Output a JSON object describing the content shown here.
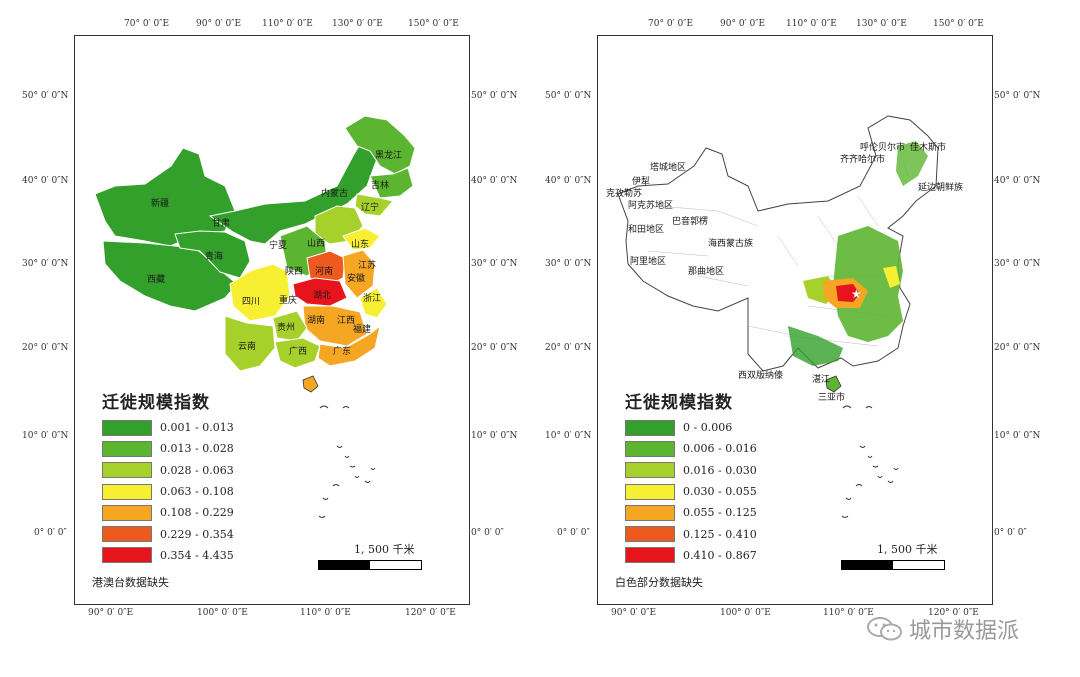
{
  "lon_ticks_top": [
    "70° 0′ 0″E",
    "90° 0′ 0″E",
    "110° 0′ 0″E",
    "130° 0′ 0″E",
    "150° 0′ 0″E"
  ],
  "lon_ticks_bottom": [
    "90° 0′ 0″E",
    "100° 0′ 0″E",
    "110° 0′ 0″E",
    "120° 0′ 0″E"
  ],
  "lat_ticks": [
    "50° 0′ 0″N",
    "40° 0′ 0″N",
    "30° 0′ 0″N",
    "20° 0′ 0″N",
    "10° 0′ 0″N",
    "0° 0′ 0″"
  ],
  "scale_label": "1, 500 千米",
  "colors": {
    "c1": "#33a02c",
    "c2": "#5cb531",
    "c3": "#a6d12a",
    "c4": "#f7f032",
    "c5": "#f5a623",
    "c6": "#ee5a1e",
    "c7": "#e8141c"
  },
  "left": {
    "legend_title": "迁徙规模指数",
    "legend_items": [
      {
        "label": "0.001 - 0.013",
        "color": "#33a02c"
      },
      {
        "label": "0.013 - 0.028",
        "color": "#5cb531"
      },
      {
        "label": "0.028 - 0.063",
        "color": "#a6d12a"
      },
      {
        "label": "0.063 - 0.108",
        "color": "#f7f032"
      },
      {
        "label": "0.108 - 0.229",
        "color": "#f5a623"
      },
      {
        "label": "0.229 - 0.354",
        "color": "#ee5a1e"
      },
      {
        "label": "0.354 - 4.435",
        "color": "#e8141c"
      }
    ],
    "missing_note": "港澳台数据缺失",
    "province_labels": [
      "黑龙江",
      "吉林",
      "内蒙古",
      "新疆",
      "甘肃",
      "青海",
      "西藏",
      "四川",
      "云南",
      "山西",
      "陕西",
      "河南",
      "湖北",
      "湖南",
      "江西",
      "贵州",
      "广西",
      "广东",
      "浙江",
      "福建",
      "安徽",
      "山东",
      "辽宁",
      "宁夏",
      "重庆",
      "江苏"
    ]
  },
  "right": {
    "legend_title": "迁徙规模指数",
    "legend_items": [
      {
        "label": "0 - 0.006",
        "color": "#33a02c"
      },
      {
        "label": "0.006 - 0.016",
        "color": "#5cb531"
      },
      {
        "label": "0.016 - 0.030",
        "color": "#a6d12a"
      },
      {
        "label": "0.030 - 0.055",
        "color": "#f7f032"
      },
      {
        "label": "0.055 - 0.125",
        "color": "#f5a623"
      },
      {
        "label": "0.125 - 0.410",
        "color": "#ee5a1e"
      },
      {
        "label": "0.410 - 0.867",
        "color": "#e8141c"
      }
    ],
    "missing_note": "白色部分数据缺失",
    "place_labels": [
      "塔城地区",
      "克孜勒苏",
      "伊犁",
      "阿克苏地区",
      "和田地区",
      "阿里地区",
      "那曲地区",
      "巴音郭楞",
      "海西蒙古族",
      "呼伦贝尔市",
      "齐齐哈尔市",
      "佳木斯市",
      "延边朝鲜族",
      "湛江",
      "三亚市",
      "西双版纳傣"
    ]
  },
  "watermark": "城市数据派"
}
